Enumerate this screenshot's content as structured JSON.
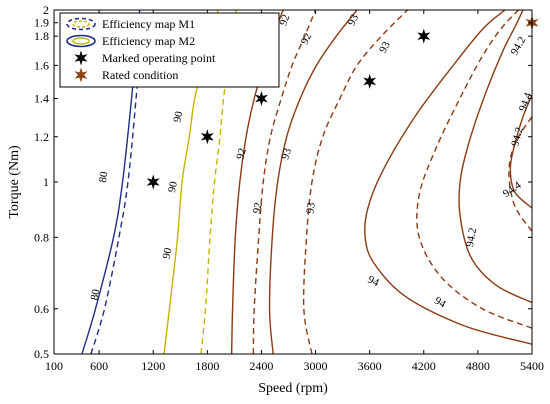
{
  "chart_data": {
    "type": "line",
    "xlabel": "Speed (rpm)",
    "ylabel": "Torque (Nm)",
    "xlim": [
      100,
      5400
    ],
    "ylim": [
      0.5,
      2
    ],
    "y_scale": "log",
    "x_ticks": [
      100,
      600,
      1200,
      1800,
      2400,
      3000,
      3600,
      4200,
      4800,
      5400
    ],
    "y_ticks": [
      0.5,
      0.6,
      0.8,
      1,
      1.2,
      1.4,
      1.6,
      1.8,
      1.9,
      2
    ],
    "y_tick_labels": [
      "0.5",
      "0.6",
      "0.8",
      "1",
      "1.2",
      "1.4",
      "1.6",
      "1.8",
      "1.9",
      "2"
    ],
    "grid": false,
    "legend_position": "top-left",
    "legend": [
      {
        "label": "Efficiency map M1",
        "style": "dashed-ellipse"
      },
      {
        "label": "Efficiency map M2",
        "style": "solid-ellipse"
      },
      {
        "label": "Marked operating point",
        "style": "black-star"
      },
      {
        "label": "Rated condition",
        "style": "brown-star"
      }
    ],
    "series": [
      {
        "level": "80",
        "map": "M2",
        "dashed": false,
        "color": "#1f2d8a",
        "points": [
          [
            410,
            0.5
          ],
          [
            560,
            0.6
          ],
          [
            760,
            0.8
          ],
          [
            860,
            1
          ],
          [
            960,
            1.4
          ],
          [
            1050,
            2
          ]
        ]
      },
      {
        "level": "80",
        "map": "M1",
        "dashed": true,
        "color": "#1f2d8a",
        "points": [
          [
            510,
            0.5
          ],
          [
            660,
            0.6
          ],
          [
            820,
            0.8
          ],
          [
            920,
            1
          ],
          [
            1010,
            1.4
          ],
          [
            1090,
            2
          ]
        ]
      },
      {
        "level": "90",
        "map": "M2",
        "dashed": false,
        "color": "#c8b400",
        "points": [
          [
            1320,
            0.5
          ],
          [
            1380,
            0.6
          ],
          [
            1470,
            0.8
          ],
          [
            1520,
            1
          ],
          [
            1600,
            1.2
          ],
          [
            1660,
            1.4
          ],
          [
            1760,
            1.6
          ],
          [
            1840,
            1.8
          ],
          [
            1920,
            2
          ]
        ]
      },
      {
        "level": "90",
        "map": "M1",
        "dashed": true,
        "color": "#c8b400",
        "points": [
          [
            1730,
            0.5
          ],
          [
            1780,
            0.6
          ],
          [
            1830,
            0.8
          ],
          [
            1880,
            1
          ],
          [
            1940,
            1.2
          ],
          [
            1980,
            1.4
          ],
          [
            2030,
            1.6
          ],
          [
            2080,
            1.8
          ],
          [
            2120,
            2
          ]
        ]
      },
      {
        "level": "92",
        "map": "M2",
        "dashed": false,
        "color": "#8b3a14",
        "points": [
          [
            2070,
            0.5
          ],
          [
            2080,
            0.6
          ],
          [
            2110,
            0.8
          ],
          [
            2160,
            1
          ],
          [
            2230,
            1.2
          ],
          [
            2320,
            1.4
          ],
          [
            2430,
            1.6
          ],
          [
            2530,
            1.8
          ],
          [
            2640,
            2
          ]
        ]
      },
      {
        "level": "92",
        "map": "M1",
        "dashed": true,
        "color": "#8b3a14",
        "points": [
          [
            2310,
            0.5
          ],
          [
            2320,
            0.6
          ],
          [
            2370,
            0.8
          ],
          [
            2420,
            1
          ],
          [
            2500,
            1.2
          ],
          [
            2620,
            1.4
          ],
          [
            2740,
            1.6
          ],
          [
            2880,
            1.8
          ],
          [
            3000,
            2
          ]
        ]
      },
      {
        "level": "93",
        "map": "M2",
        "dashed": false,
        "color": "#8b3a14",
        "points": [
          [
            2530,
            0.5
          ],
          [
            2490,
            0.6
          ],
          [
            2520,
            0.8
          ],
          [
            2580,
            1
          ],
          [
            2680,
            1.2
          ],
          [
            2830,
            1.4
          ],
          [
            3010,
            1.6
          ],
          [
            3230,
            1.8
          ],
          [
            3460,
            2
          ]
        ]
      },
      {
        "level": "93",
        "map": "M1",
        "dashed": true,
        "color": "#8b3a14",
        "points": [
          [
            2960,
            0.5
          ],
          [
            2870,
            0.6
          ],
          [
            2900,
            0.8
          ],
          [
            2960,
            1
          ],
          [
            3080,
            1.2
          ],
          [
            3270,
            1.4
          ],
          [
            3460,
            1.6
          ],
          [
            3730,
            1.8
          ],
          [
            4020,
            2
          ]
        ]
      },
      {
        "level": "94",
        "map": "M2",
        "dashed": false,
        "color": "#8b3a14",
        "points": [
          [
            5400,
            0.52
          ],
          [
            4650,
            0.56
          ],
          [
            4000,
            0.63
          ],
          [
            3650,
            0.72
          ],
          [
            3550,
            0.8
          ],
          [
            3580,
            0.9
          ],
          [
            3750,
            1.05
          ],
          [
            4100,
            1.3
          ],
          [
            4500,
            1.58
          ],
          [
            4850,
            1.85
          ],
          [
            5100,
            2
          ]
        ]
      },
      {
        "level": "94",
        "map": "M1",
        "dashed": true,
        "color": "#8b3a14",
        "points": [
          [
            5400,
            0.555
          ],
          [
            4850,
            0.6
          ],
          [
            4400,
            0.68
          ],
          [
            4150,
            0.8
          ],
          [
            4150,
            0.95
          ],
          [
            4340,
            1.15
          ],
          [
            4600,
            1.4
          ],
          [
            4840,
            1.65
          ],
          [
            5050,
            1.85
          ],
          [
            5250,
            2
          ]
        ]
      },
      {
        "level": "94.2",
        "map": "M2",
        "dashed": false,
        "color": "#8b3a14",
        "points": [
          [
            5400,
            0.615
          ],
          [
            5000,
            0.66
          ],
          [
            4720,
            0.74
          ],
          [
            4600,
            0.88
          ],
          [
            4610,
            1.02
          ],
          [
            4720,
            1.2
          ],
          [
            4900,
            1.45
          ],
          [
            5080,
            1.7
          ],
          [
            5220,
            1.88
          ],
          [
            5300,
            2
          ]
        ]
      },
      {
        "level": "94.2",
        "map": "M1",
        "dashed": true,
        "color": "#8b3a14",
        "points": [
          [
            5400,
            0.82
          ],
          [
            5220,
            0.9
          ],
          [
            5150,
            1
          ],
          [
            5160,
            1.1
          ],
          [
            5250,
            1.2
          ],
          [
            5400,
            1.3
          ]
        ]
      },
      {
        "level": "94.4",
        "map": "M2",
        "dashed": false,
        "color": "#8b3a14",
        "points": [
          [
            5400,
            0.9
          ],
          [
            5210,
            0.96
          ],
          [
            5160,
            1.05
          ],
          [
            5200,
            1.15
          ],
          [
            5300,
            1.3
          ],
          [
            5400,
            1.42
          ]
        ]
      }
    ],
    "contour_labels": [
      {
        "text": "80",
        "x": 650,
        "y": 1.02,
        "angle": -80
      },
      {
        "text": "80",
        "x": 560,
        "y": 0.635,
        "angle": -80
      },
      {
        "text": "90",
        "x": 1815,
        "y": 1.62,
        "angle": -78
      },
      {
        "text": "90",
        "x": 1480,
        "y": 1.3,
        "angle": -78
      },
      {
        "text": "90",
        "x": 1420,
        "y": 0.98,
        "angle": -78
      },
      {
        "text": "90",
        "x": 1360,
        "y": 0.75,
        "angle": -78
      },
      {
        "text": "92",
        "x": 2660,
        "y": 1.92,
        "angle": -70
      },
      {
        "text": "92",
        "x": 2900,
        "y": 1.78,
        "angle": -65
      },
      {
        "text": "92",
        "x": 2180,
        "y": 1.12,
        "angle": -75
      },
      {
        "text": "92",
        "x": 2360,
        "y": 0.9,
        "angle": -78
      },
      {
        "text": "93",
        "x": 3420,
        "y": 1.92,
        "angle": -65
      },
      {
        "text": "93",
        "x": 2680,
        "y": 1.12,
        "angle": -72
      },
      {
        "text": "93",
        "x": 3770,
        "y": 1.72,
        "angle": -62
      },
      {
        "text": "93",
        "x": 2950,
        "y": 0.9,
        "angle": -82
      },
      {
        "text": "94",
        "x": 3640,
        "y": 0.67,
        "angle": 25
      },
      {
        "text": "94",
        "x": 4380,
        "y": 0.615,
        "angle": 30
      },
      {
        "text": "94.2",
        "x": 5250,
        "y": 1.73,
        "angle": -60
      },
      {
        "text": "94.2",
        "x": 4730,
        "y": 0.8,
        "angle": -80
      },
      {
        "text": "94.2",
        "x": 5240,
        "y": 1.2,
        "angle": -75
      },
      {
        "text": "94.4",
        "x": 5330,
        "y": 1.38,
        "angle": -70
      },
      {
        "text": "94.4",
        "x": 5180,
        "y": 0.97,
        "angle": -35
      }
    ],
    "marked_points": [
      [
        1200,
        1
      ],
      [
        1800,
        1.2
      ],
      [
        2400,
        1.4
      ],
      [
        3600,
        1.5
      ],
      [
        4200,
        1.8
      ]
    ],
    "rated_points": [
      [
        5400,
        1.9
      ]
    ]
  }
}
